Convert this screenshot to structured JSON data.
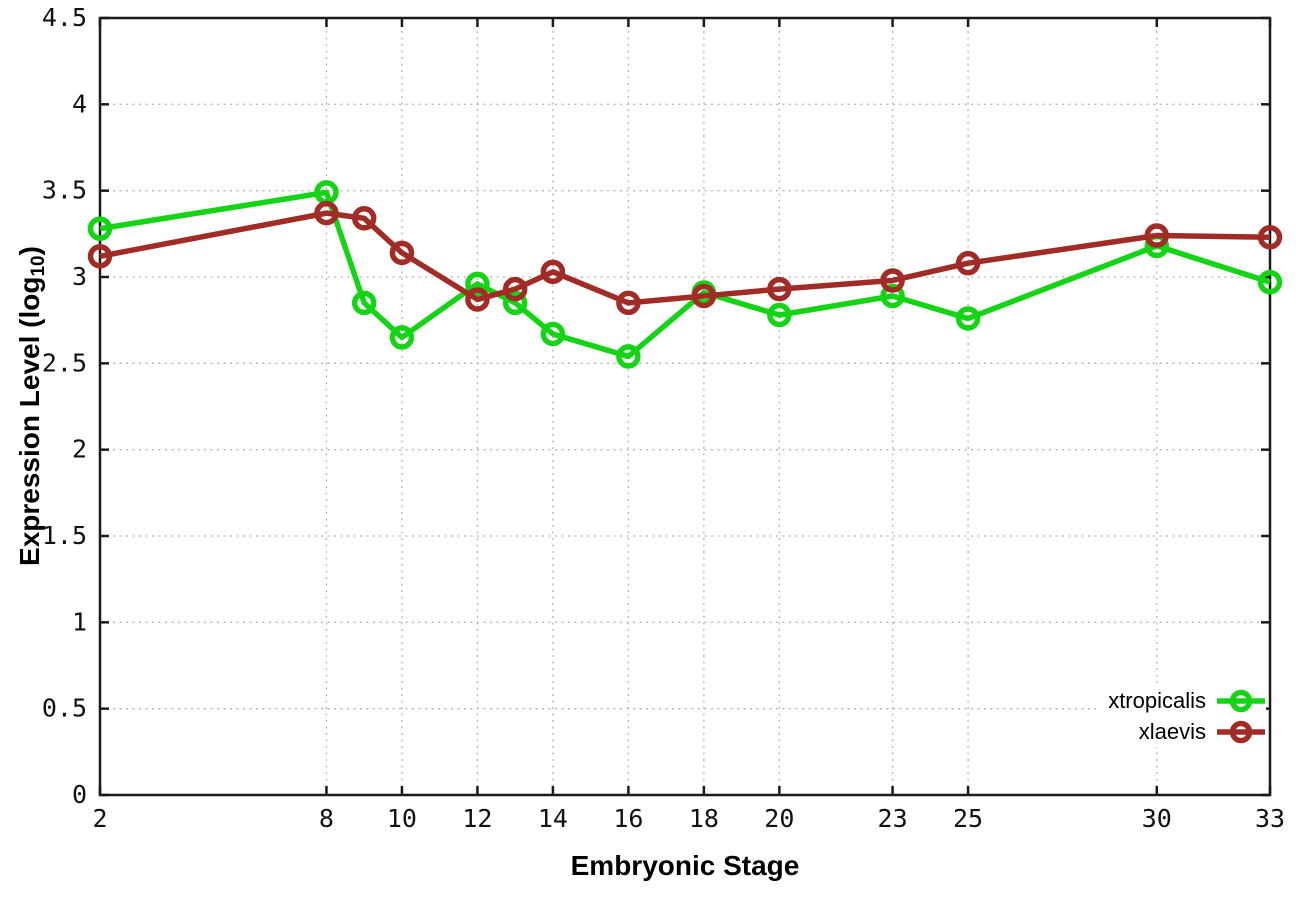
{
  "chart_data": {
    "type": "line",
    "title": "",
    "xlabel": "Embryonic Stage",
    "ylabel": {
      "prefix": "Expression Level (log",
      "sub": "10",
      "suffix": ")"
    },
    "xlim": [
      2,
      33
    ],
    "ylim": [
      0,
      4.5
    ],
    "xticks": [
      2,
      8,
      10,
      12,
      14,
      16,
      18,
      20,
      23,
      25,
      30,
      33
    ],
    "yticks": [
      0,
      0.5,
      1,
      1.5,
      2,
      2.5,
      3,
      3.5,
      4,
      4.5
    ],
    "ytick_labels": [
      "0",
      "0.5",
      "1",
      "1.5",
      "2",
      "2.5",
      "3",
      "3.5",
      "4",
      "4.5"
    ],
    "grid": true,
    "legend_position": "inside-bottom-right",
    "marker": "open-circle",
    "x": [
      2,
      8,
      9,
      10,
      12,
      13,
      14,
      16,
      18,
      20,
      23,
      25,
      30,
      33
    ],
    "series": [
      {
        "name": "xtropicalis",
        "color": "#15d315",
        "values": [
          3.28,
          3.49,
          2.85,
          2.65,
          2.96,
          2.85,
          2.67,
          2.54,
          2.91,
          2.78,
          2.89,
          2.76,
          3.18,
          2.97
        ]
      },
      {
        "name": "xlaevis",
        "color": "#a12c25",
        "values": [
          3.12,
          3.37,
          3.34,
          3.14,
          2.87,
          2.93,
          3.03,
          2.85,
          2.89,
          2.93,
          2.98,
          3.08,
          3.24,
          3.23
        ]
      }
    ],
    "colors": {
      "grid": "#b5b5b5",
      "axis": "#1a1a1a",
      "text": "#000000",
      "background": "#ffffff"
    }
  }
}
